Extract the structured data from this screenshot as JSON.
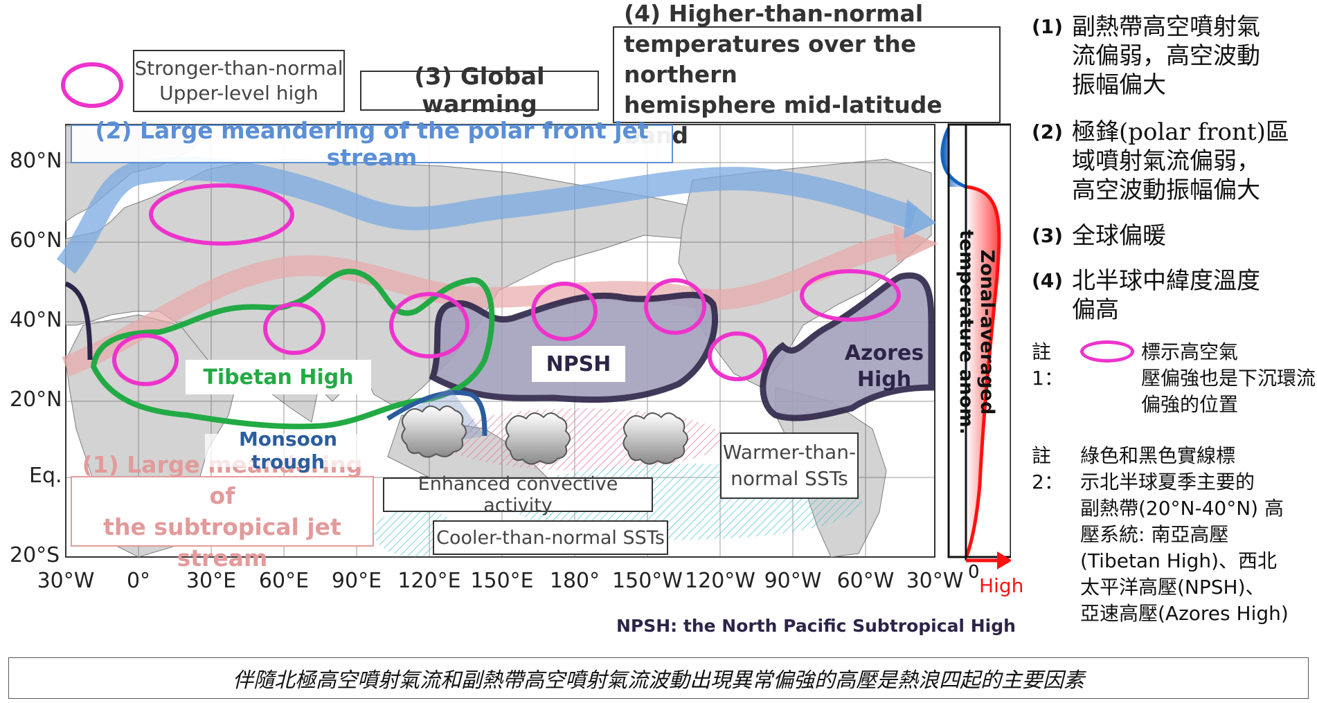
{
  "map": {
    "lat_labels": [
      "80°N",
      "60°N",
      "40°N",
      "20°N",
      "Eq.",
      "20°S"
    ],
    "lon_labels": [
      "30°W",
      "0°",
      "30°E",
      "60°E",
      "90°E",
      "120°E",
      "150°E",
      "180°",
      "150°W",
      "120°W",
      "90°W",
      "60°W",
      "30°W"
    ]
  },
  "legend": {
    "marker_desc": "Stronger-than-normal\nUpper-level high",
    "marker_color": "#ee33cc"
  },
  "headers": {
    "global_warming": "(3) Global warming",
    "mid_latitude": "(4) Higher-than-normal\ntemperatures over the northern\nhemisphere mid-latitude band",
    "polar_jet": "(2) Large meandering of the polar front jet stream",
    "subtropical_jet": "(1) Large meandering of\nthe subtropical jet stream"
  },
  "features": {
    "tibetan_high": "Tibetan High",
    "npsh": "NPSH",
    "azores_high": "Azores\nHigh",
    "monsoon_trough": "Monsoon trough",
    "warmer_sst": "Warmer-than-\nnormal SSTs",
    "convective": "Enhanced convective activity",
    "cooler_sst": "Cooler-than-normal SSTs"
  },
  "profile": {
    "axis_title": "Zonal-averaged\ntemperature anom.",
    "zero": "0",
    "high": "High"
  },
  "npsh_note": "NPSH: the North Pacific Subtropical High",
  "colors": {
    "polar_jet": "#5b8fd6",
    "subtropical_jet": "#e39a9a",
    "tibetan": "#22aa44",
    "npsh": "#2d2448",
    "high": "#ff1111"
  },
  "right_panel": {
    "items": [
      {
        "label": "(1)",
        "text": "副熱帶高空噴射氣\n流偏弱，高空波動\n振幅偏大"
      },
      {
        "label": "(2)",
        "text": "極鋒(polar front)區\n域噴射氣流偏弱，\n高空波動振幅偏大"
      },
      {
        "label": "(3)",
        "text": "全球偏暖"
      },
      {
        "label": "(4)",
        "text": "北半球中緯度溫度\n偏高"
      }
    ],
    "note1_label": "註1：",
    "note1_text": "標示高空氣\n壓偏強也是下沉環流\n偏強的位置",
    "note2_label": "註2：",
    "note2_text": "綠色和黑色實線標\n示北半球夏季主要的\n副熱帶(20°N-40°N) 高\n壓系統: 南亞高壓\n(Tibetan High)、西北\n太平洋高壓(NPSH)、\n亞速高壓(Azores High)"
  },
  "caption": "伴隨北極高空噴射氣流和副熱帶高空噴射氣流波動出現異常偏強的高壓是熱浪四起的主要因素"
}
